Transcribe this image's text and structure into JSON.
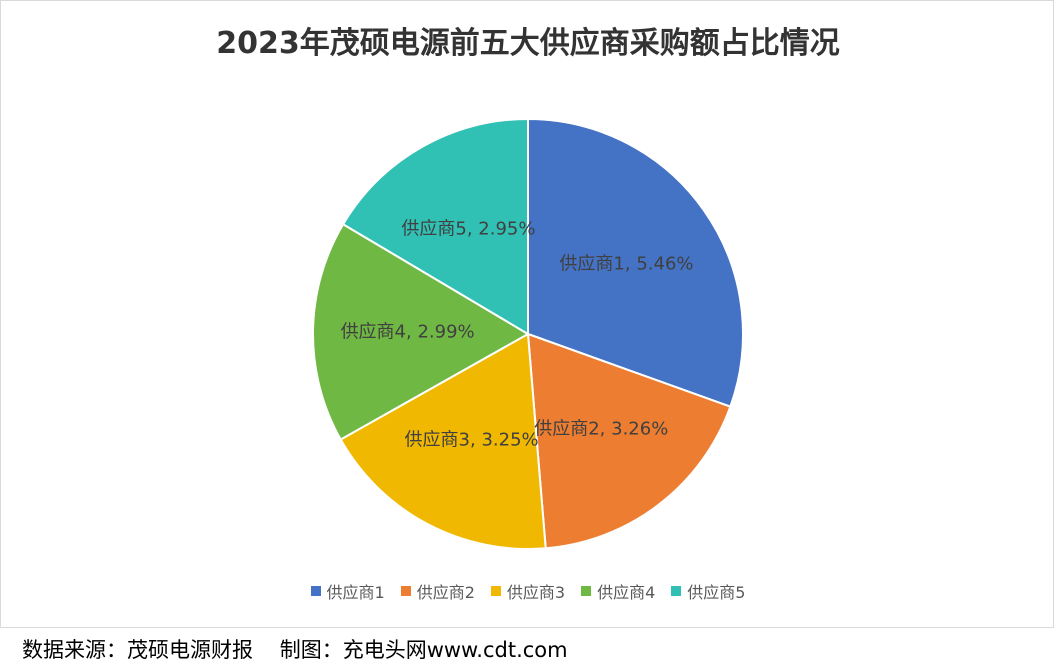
{
  "chart_data": {
    "type": "pie",
    "title": "2023年茂硕电源前五大供应商采购额占比情况",
    "categories": [
      "供应商1",
      "供应商2",
      "供应商3",
      "供应商4",
      "供应商5"
    ],
    "values": [
      5.46,
      3.26,
      3.25,
      2.99,
      2.95
    ],
    "data_labels": [
      "供应商1, 5.46%",
      "供应商2, 3.26%",
      "供应商3, 3.25%",
      "供应商4, 2.99%",
      "供应商5, 2.95%"
    ],
    "colors": [
      "#4472c4",
      "#ed7d31",
      "#f0b800",
      "#70b844",
      "#30c0b4"
    ],
    "legend_position": "bottom"
  },
  "footer": {
    "source": "数据来源：茂硕电源财报    制图：充电头网www.cdt.com"
  }
}
